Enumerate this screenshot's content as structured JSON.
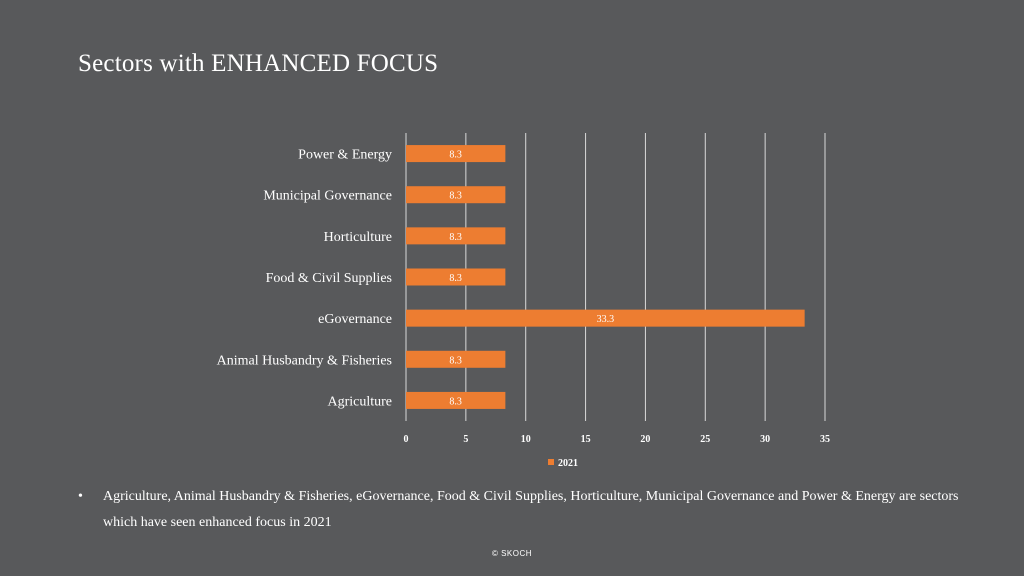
{
  "slide": {
    "title": "Sectors with ENHANCED FOCUS",
    "bullet_symbol": "•",
    "bullet_text": "Agriculture, Animal Husbandry & Fisheries, eGovernance, Food & Civil Supplies, Horticulture, Municipal Governance and Power & Energy are sectors which have seen enhanced focus in 2021",
    "footer": "© SKOCH"
  },
  "colors": {
    "background": "#58595b",
    "bar": "#ed7d31",
    "gridline": "#d9d9d9",
    "text": "#ffffff"
  },
  "chart_data": {
    "type": "bar",
    "orientation": "horizontal",
    "categories": [
      "Power & Energy",
      "Municipal Governance",
      "Horticulture",
      "Food & Civil Supplies",
      "eGovernance",
      "Animal Husbandry & Fisheries",
      "Agriculture"
    ],
    "series": [
      {
        "name": "2021",
        "values": [
          8.3,
          8.3,
          8.3,
          8.3,
          33.3,
          8.3,
          8.3
        ]
      }
    ],
    "data_labels": [
      "8.3",
      "8.3",
      "8.3",
      "8.3",
      "33.3",
      "8.3",
      "8.3"
    ],
    "x_ticks": [
      "0",
      "5",
      "10",
      "15",
      "20",
      "25",
      "30",
      "35"
    ],
    "xlim": [
      0,
      35
    ],
    "grid": "vertical",
    "legend": "bottom"
  }
}
